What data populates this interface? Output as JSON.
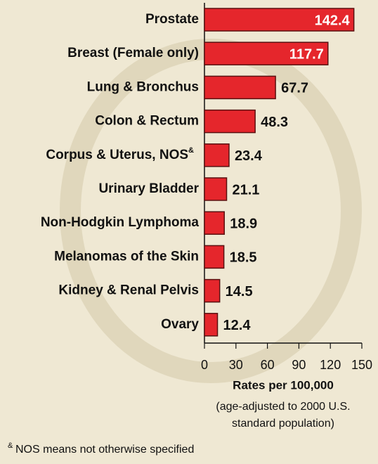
{
  "chart_data": {
    "type": "bar",
    "orientation": "horizontal",
    "categories": [
      "Prostate",
      "Breast (Female only)",
      "Lung & Bronchus",
      "Colon & Rectum",
      "Corpus & Uterus, NOS",
      "Urinary Bladder",
      "Non-Hodgkin Lymphoma",
      "Melanomas of the Skin",
      "Kidney & Renal Pelvis",
      "Ovary"
    ],
    "values": [
      142.4,
      117.7,
      67.7,
      48.3,
      23.4,
      21.1,
      18.9,
      18.5,
      14.5,
      12.4
    ],
    "color": "#e5262c",
    "xlim": [
      0,
      150
    ],
    "xticks": [
      0,
      30,
      60,
      90,
      120,
      150
    ],
    "x_label": "Rates per 100,000",
    "x_sublabel": [
      "(age-adjusted to 2000 U.S.",
      "standard population)"
    ],
    "footnote_marker": "&",
    "footnote": "NOS means not otherwise specified"
  }
}
